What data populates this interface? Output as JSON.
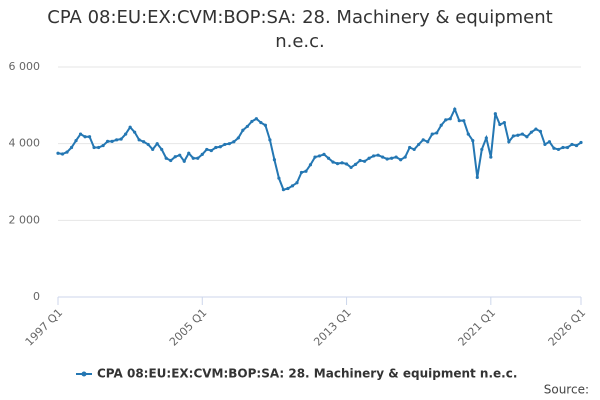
{
  "chart_data": {
    "type": "line",
    "title": "CPA 08:EU:EX:CVM:BOP:SA: 28. Machinery & equipment n.e.c.",
    "source": "Source:",
    "categories": [
      "1997 Q1",
      null,
      null,
      null,
      null,
      null,
      null,
      null,
      null,
      null,
      null,
      null,
      null,
      null,
      null,
      null,
      null,
      null,
      null,
      null,
      null,
      null,
      null,
      null,
      null,
      null,
      null,
      null,
      null,
      null,
      null,
      null,
      "2005 Q1",
      null,
      null,
      null,
      null,
      null,
      null,
      null,
      null,
      null,
      null,
      null,
      null,
      null,
      null,
      null,
      null,
      null,
      null,
      null,
      null,
      null,
      null,
      null,
      null,
      null,
      null,
      null,
      null,
      null,
      null,
      null,
      "2013 Q1",
      null,
      null,
      null,
      null,
      null,
      null,
      null,
      null,
      null,
      null,
      null,
      null,
      null,
      null,
      null,
      null,
      null,
      null,
      null,
      null,
      null,
      null,
      null,
      null,
      null,
      null,
      null,
      null,
      null,
      null,
      null,
      "2021 Q1",
      null,
      null,
      null,
      null,
      null,
      null,
      null,
      null,
      null,
      null,
      null,
      null,
      null,
      null,
      null,
      null,
      null,
      null,
      null,
      "2026 Q1"
    ],
    "series": [
      {
        "name": "CPA 08:EU:EX:CVM:BOP:SA: 28. Machinery & equipment n.e.c.",
        "color": "#2477b3",
        "values": [
          3750,
          3730,
          3780,
          3900,
          4080,
          4250,
          4180,
          4180,
          3900,
          3900,
          3950,
          4060,
          4060,
          4100,
          4120,
          4250,
          4430,
          4300,
          4100,
          4050,
          3980,
          3850,
          4000,
          3850,
          3620,
          3560,
          3660,
          3700,
          3540,
          3750,
          3620,
          3620,
          3720,
          3850,
          3820,
          3900,
          3920,
          3980,
          4000,
          4050,
          4150,
          4350,
          4450,
          4580,
          4650,
          4550,
          4480,
          4100,
          3580,
          3100,
          2800,
          2830,
          2900,
          2980,
          3250,
          3280,
          3450,
          3650,
          3680,
          3720,
          3620,
          3520,
          3480,
          3500,
          3470,
          3380,
          3460,
          3560,
          3540,
          3620,
          3680,
          3700,
          3650,
          3600,
          3620,
          3650,
          3580,
          3650,
          3900,
          3850,
          3980,
          4100,
          4050,
          4250,
          4280,
          4480,
          4620,
          4650,
          4900,
          4600,
          4600,
          4250,
          4080,
          3120,
          3850,
          4150,
          3650,
          4780,
          4500,
          4550,
          4050,
          4200,
          4220,
          4250,
          4180,
          4300,
          4380,
          4320,
          3980,
          4050,
          3880,
          3850,
          3900,
          3900,
          3980,
          3950,
          4030
        ]
      }
    ],
    "ylim": [
      0,
      6000
    ],
    "yticks": [
      0,
      {
        "value": 2000,
        "label": "2 000"
      },
      {
        "value": 4000,
        "label": "4 000"
      },
      {
        "value": 6000,
        "label": "6 000"
      }
    ],
    "grid": true
  }
}
